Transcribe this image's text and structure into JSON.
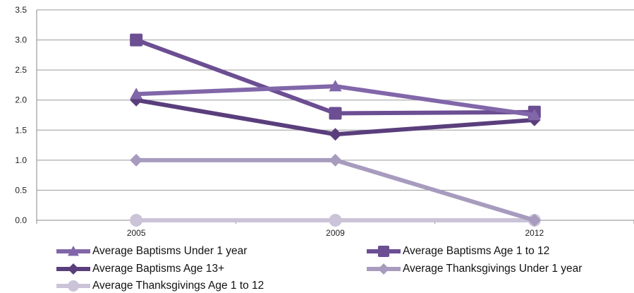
{
  "chart_data": {
    "type": "line",
    "title": "",
    "xlabel": "",
    "ylabel": "",
    "categories": [
      "2005",
      "2009",
      "2012"
    ],
    "ylim": [
      0,
      3.5
    ],
    "y_ticks": [
      "0.0",
      "0.5",
      "1.0",
      "1.5",
      "2.0",
      "2.5",
      "3.0",
      "3.5"
    ],
    "grid": true,
    "legend_position": "bottom",
    "series": [
      {
        "name": "Average Baptisms Under 1 year",
        "values": [
          2.1,
          2.23,
          1.75
        ],
        "color": "#8167a9",
        "marker": "triangle"
      },
      {
        "name": "Average Baptisms Age 1 to 12",
        "values": [
          3.0,
          1.78,
          1.8
        ],
        "color": "#6c4e93",
        "marker": "square"
      },
      {
        "name": "Average Baptisms Age 13+",
        "values": [
          2.0,
          1.43,
          1.67
        ],
        "color": "#5a3e7c",
        "marker": "diamond"
      },
      {
        "name": "Average Thanksgivings Under 1 year",
        "values": [
          1.0,
          1.0,
          0.0
        ],
        "color": "#a79bbe",
        "marker": "diamond"
      },
      {
        "name": "Average Thanksgivings Age 1 to 12",
        "values": [
          0.0,
          0.0,
          0.0
        ],
        "color": "#cbc3d8",
        "marker": "circle"
      }
    ]
  }
}
